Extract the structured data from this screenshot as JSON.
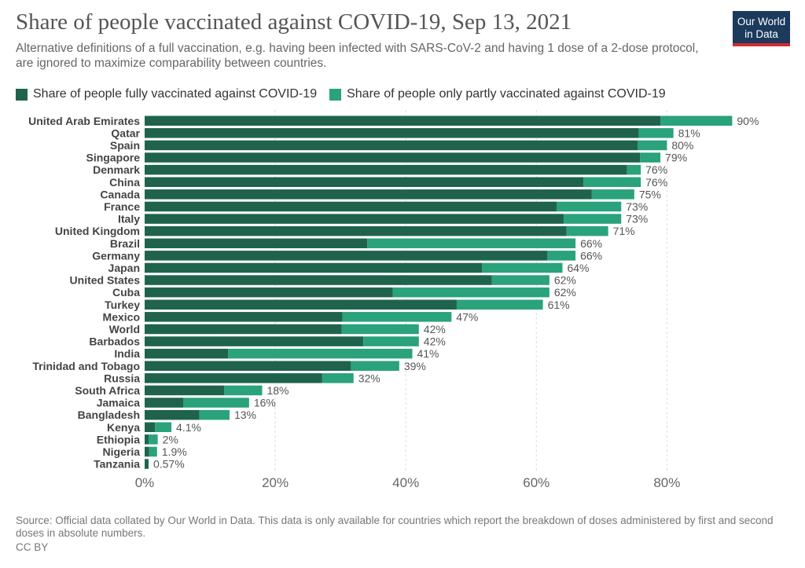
{
  "header": {
    "title": "Share of people vaccinated against COVID-19, Sep 13, 2021",
    "subtitle": "Alternative definitions of a full vaccination, e.g. having been infected with SARS-CoV-2 and having 1 dose of a 2-dose protocol, are ignored to maximize comparability between countries.",
    "logo_line1": "Our World",
    "logo_line2": "in Data"
  },
  "footer": {
    "source": "Source: Official data collated by Our World in Data. This data is only available for countries which report the breakdown of doses administered by first and second doses in absolute numbers.",
    "license": "CC BY"
  },
  "colors": {
    "fully": "#1f634d",
    "partly": "#2aa27b",
    "logo_bg": "#1b3a5c",
    "logo_bar": "#d42b31"
  },
  "chart_data": {
    "type": "bar",
    "orientation": "horizontal",
    "stacked": true,
    "title": "Share of people vaccinated against COVID-19, Sep 13, 2021",
    "categories": [
      "United Arab Emirates",
      "Qatar",
      "Spain",
      "Singapore",
      "Denmark",
      "China",
      "Canada",
      "France",
      "Italy",
      "United Kingdom",
      "Brazil",
      "Germany",
      "Japan",
      "United States",
      "Cuba",
      "Turkey",
      "Mexico",
      "World",
      "Barbados",
      "India",
      "Trinidad and Tobago",
      "Russia",
      "South Africa",
      "Jamaica",
      "Bangladesh",
      "Kenya",
      "Ethiopia",
      "Nigeria",
      "Tanzania"
    ],
    "series": [
      {
        "name": "Share of people fully vaccinated against COVID-19",
        "color": "#1f634d",
        "values": [
          79.0,
          75.7,
          75.5,
          75.9,
          73.9,
          67.2,
          68.5,
          63.1,
          64.2,
          64.6,
          34.1,
          61.7,
          51.7,
          53.2,
          38.0,
          47.8,
          30.3,
          30.2,
          33.5,
          12.8,
          31.6,
          27.2,
          12.2,
          5.9,
          8.4,
          1.6,
          0.6,
          0.7,
          0.6
        ]
      },
      {
        "name": "Share of people only partly vaccinated against COVID-19",
        "color": "#2aa27b",
        "values": [
          11.0,
          5.3,
          4.5,
          3.1,
          2.1,
          8.8,
          6.5,
          9.9,
          8.8,
          6.4,
          31.9,
          4.3,
          12.3,
          8.8,
          24.0,
          13.2,
          16.7,
          11.8,
          8.5,
          28.2,
          7.4,
          4.8,
          5.8,
          10.1,
          4.6,
          2.5,
          1.4,
          1.2,
          0.0
        ]
      }
    ],
    "labels": [
      "90%",
      "81%",
      "80%",
      "79%",
      "76%",
      "76%",
      "75%",
      "73%",
      "73%",
      "71%",
      "66%",
      "66%",
      "64%",
      "62%",
      "62%",
      "61%",
      "47%",
      "42%",
      "42%",
      "41%",
      "39%",
      "32%",
      "18%",
      "16%",
      "13%",
      "4.1%",
      "2%",
      "1.9%",
      "0.57%"
    ],
    "xticks": [
      "0%",
      "20%",
      "40%",
      "60%",
      "80%"
    ],
    "xtick_values": [
      0,
      20,
      40,
      60,
      80
    ],
    "xlim": [
      0,
      92
    ],
    "grid": true,
    "legend": "top"
  }
}
